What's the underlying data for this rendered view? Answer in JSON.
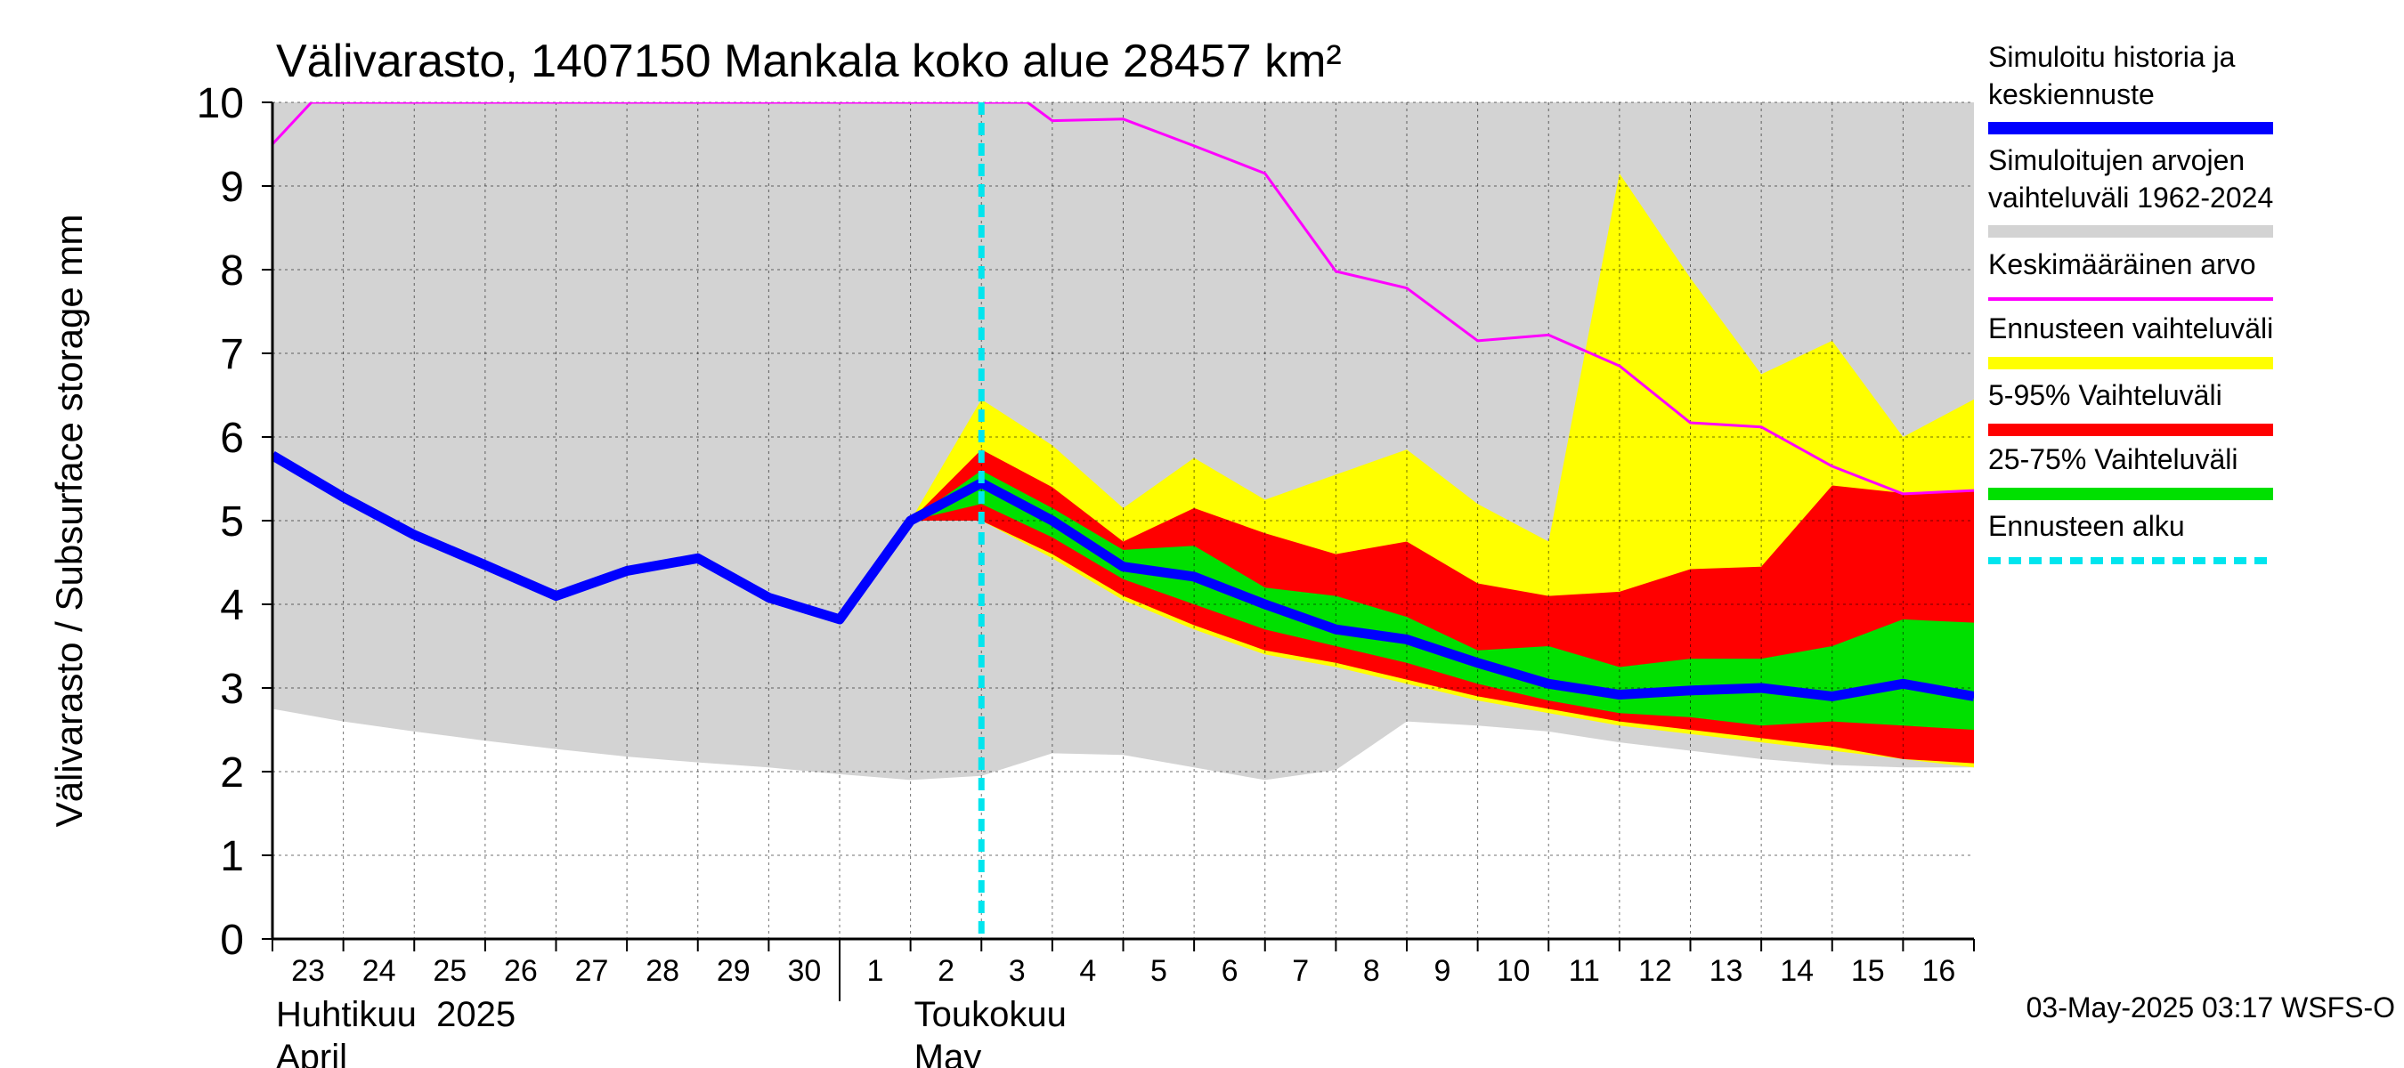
{
  "chart_data": {
    "type": "area",
    "title": "Välivarasto, 1407150 Mankala koko alue 28457 km²",
    "ylabel": "Välivarasto / Subsurface storage  mm",
    "ylim": [
      0,
      10
    ],
    "yticks": [
      0,
      1,
      2,
      3,
      4,
      5,
      6,
      7,
      8,
      9,
      10
    ],
    "x": [
      23,
      24,
      25,
      26,
      27,
      28,
      29,
      30,
      31,
      32,
      33,
      34,
      35,
      36,
      37,
      38,
      39,
      40,
      41,
      42,
      43,
      44,
      45,
      46,
      47
    ],
    "xlim": [
      23,
      47
    ],
    "x_tick_labels": [
      "23",
      "24",
      "25",
      "26",
      "27",
      "28",
      "29",
      "30",
      "1",
      "2",
      "3",
      "4",
      "5",
      "6",
      "7",
      "8",
      "9",
      "10",
      "11",
      "12",
      "13",
      "14",
      "15",
      "16"
    ],
    "month_labels": [
      {
        "fi": "Huhtikuu  2025",
        "en": "April",
        "x": 23
      },
      {
        "fi": "Toukokuu",
        "en": "May",
        "x": 32
      }
    ],
    "month_divider_x": 31,
    "forecast_start_x": 33,
    "series": [
      {
        "name": "Simuloitujen arvojen vaihteluväli 1962-2024",
        "kind": "band",
        "color": "#d3d3d3",
        "x": [
          23,
          24,
          25,
          26,
          27,
          28,
          29,
          30,
          31,
          32,
          33,
          34,
          35,
          36,
          37,
          38,
          39,
          40,
          41,
          42,
          43,
          44,
          45,
          46,
          47
        ],
        "upper": [
          10,
          10,
          10,
          10,
          10,
          10,
          10,
          10,
          10,
          10,
          10,
          10,
          10,
          10,
          10,
          10,
          10,
          10,
          10,
          10,
          10,
          10,
          10,
          10,
          10
        ],
        "lower": [
          2.75,
          2.6,
          2.48,
          2.37,
          2.27,
          2.18,
          2.11,
          2.05,
          1.97,
          1.9,
          1.95,
          2.22,
          2.2,
          2.05,
          1.9,
          2.02,
          2.6,
          2.55,
          2.48,
          2.35,
          2.25,
          2.15,
          2.08,
          2.05,
          2.05
        ]
      },
      {
        "name": "Ennusteen vaihteluväli",
        "kind": "band",
        "color": "#ffff00",
        "x": [
          32,
          33,
          34,
          35,
          36,
          37,
          38,
          39,
          40,
          41,
          42,
          43,
          44,
          45,
          46,
          47
        ],
        "upper": [
          5.0,
          6.45,
          5.9,
          5.15,
          5.75,
          5.25,
          5.55,
          5.85,
          5.2,
          4.75,
          9.15,
          7.9,
          6.75,
          7.15,
          6.0,
          6.45
        ],
        "lower": [
          5.0,
          5.0,
          4.55,
          4.05,
          3.7,
          3.4,
          3.25,
          3.05,
          2.85,
          2.7,
          2.55,
          2.45,
          2.35,
          2.25,
          2.15,
          2.05
        ]
      },
      {
        "name": "5-95% Vaihteluväli",
        "kind": "band",
        "color": "#ff0000",
        "x": [
          32,
          33,
          34,
          35,
          36,
          37,
          38,
          39,
          40,
          41,
          42,
          43,
          44,
          45,
          46,
          47
        ],
        "upper": [
          5.0,
          5.85,
          5.4,
          4.75,
          5.15,
          4.85,
          4.6,
          4.75,
          4.25,
          4.1,
          4.15,
          4.42,
          4.45,
          5.42,
          5.33,
          5.35
        ],
        "lower": [
          5.0,
          5.0,
          4.6,
          4.1,
          3.75,
          3.45,
          3.3,
          3.1,
          2.9,
          2.75,
          2.6,
          2.5,
          2.4,
          2.3,
          2.15,
          2.1
        ]
      },
      {
        "name": "25-75% Vaihteluväli",
        "kind": "band",
        "color": "#00e000",
        "x": [
          32,
          33,
          34,
          35,
          36,
          37,
          38,
          39,
          40,
          41,
          42,
          43,
          44,
          45,
          46,
          47
        ],
        "upper": [
          5.0,
          5.6,
          5.15,
          4.65,
          4.7,
          4.2,
          4.1,
          3.85,
          3.45,
          3.5,
          3.25,
          3.35,
          3.35,
          3.5,
          3.82,
          3.78
        ],
        "lower": [
          5.0,
          5.2,
          4.8,
          4.3,
          4.0,
          3.7,
          3.5,
          3.3,
          3.05,
          2.85,
          2.7,
          2.65,
          2.55,
          2.6,
          2.55,
          2.5
        ]
      },
      {
        "name": "Keskimääräinen arvo",
        "kind": "line",
        "color": "#ff00ff",
        "width": 3,
        "x": [
          23,
          23.55,
          33.65,
          34,
          35,
          36,
          37,
          38,
          39,
          40,
          41,
          42,
          43,
          44,
          45,
          46,
          47
        ],
        "y": [
          9.5,
          10.0,
          10.0,
          9.78,
          9.8,
          9.48,
          9.15,
          7.98,
          7.78,
          7.15,
          7.22,
          6.85,
          6.17,
          6.12,
          5.65,
          5.32,
          5.36
        ]
      },
      {
        "name": "Simuloitu historia ja keskiennuste",
        "kind": "line",
        "color": "#0000ff",
        "width": 11,
        "x": [
          23,
          24,
          25,
          26,
          27,
          28,
          29,
          30,
          31,
          32,
          33,
          34,
          35,
          36,
          37,
          38,
          39,
          40,
          41,
          42,
          43,
          44,
          45,
          46,
          47
        ],
        "y": [
          5.78,
          5.28,
          4.83,
          4.47,
          4.1,
          4.4,
          4.55,
          4.08,
          3.82,
          5.0,
          5.45,
          5.0,
          4.45,
          4.33,
          4.0,
          3.7,
          3.58,
          3.3,
          3.05,
          2.92,
          2.97,
          3.0,
          2.9,
          3.05,
          2.9
        ]
      }
    ],
    "legend_position": "right",
    "legend": [
      {
        "label": "Simuloitu historia ja keskiennuste",
        "color": "#0000ff",
        "style": "solid"
      },
      {
        "label": "Simuloitujen arvojen vaihteluväli 1962-2024",
        "color": "#d3d3d3",
        "style": "solid"
      },
      {
        "label": "Keskimääräinen arvo",
        "color": "#ff00ff",
        "style": "thin"
      },
      {
        "label": "Ennusteen vaihteluväli",
        "color": "#ffff00",
        "style": "solid"
      },
      {
        "label": "5-95% Vaihteluväli",
        "color": "#ff0000",
        "style": "solid"
      },
      {
        "label": "25-75% Vaihteluväli",
        "color": "#00e000",
        "style": "solid"
      },
      {
        "label": "Ennusteen alku",
        "color": "#00e5ee",
        "style": "dashed"
      }
    ],
    "forecast_marker_color": "#00e5ee",
    "footer": "03-May-2025 03:17 WSFS-O"
  }
}
